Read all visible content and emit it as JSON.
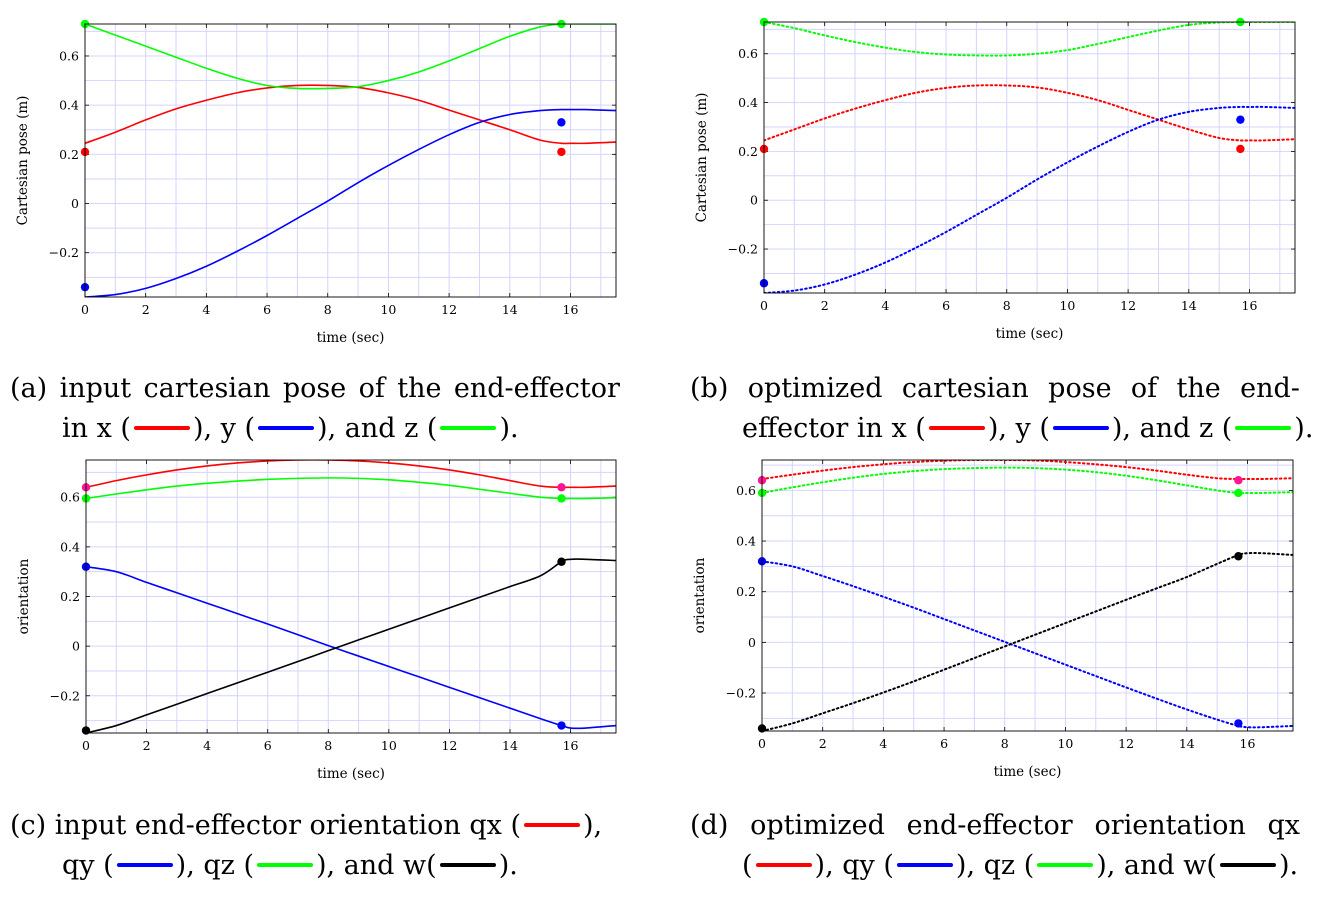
{
  "captions": {
    "a": {
      "prefix": "(a)",
      "l1": [
        "input",
        "cartesian",
        "pose",
        "of",
        "the",
        "end-effector"
      ],
      "p1": "in x (",
      "p2": "), y (",
      "p3": "), and z (",
      "p4": ")."
    },
    "b": {
      "prefix": "(b)",
      "l1": [
        "optimized",
        "cartesian",
        "pose",
        "of",
        "the",
        "end-"
      ],
      "p1": "effector in x (",
      "p2": "), y (",
      "p3": "), and z (",
      "p4": ")."
    },
    "c": {
      "prefix": "(c)",
      "l1a": "input end-effector orientation qx (",
      "l1b": "),",
      "p1": "qy (",
      "p2": "), qz (",
      "p3": "), and w(",
      "p4": ")."
    },
    "d": {
      "prefix": "(d)",
      "l1": [
        "optimized",
        "end-effector",
        "orientation",
        "qx"
      ],
      "p1": "(",
      "p2": "), qy (",
      "p3": "), qz (",
      "p4": "), and w(",
      "p5": ")."
    }
  },
  "colors": {
    "x": "#ff0000",
    "y": "#0000ff",
    "z": "#00ff00",
    "w": "#000000",
    "marker_x_orientation": "#ff1493",
    "grid": "#d4d4ff"
  },
  "chart_data": [
    {
      "id": "a",
      "type": "line",
      "xlabel": "time (sec)",
      "ylabel": "Cartesian pose (m)",
      "xlim": [
        0,
        17.5
      ],
      "ylim": [
        -0.38,
        0.73
      ],
      "grid": true,
      "line_style": "solid",
      "xticks": [
        "0",
        "2",
        "4",
        "6",
        "8",
        "10",
        "12",
        "14",
        "16"
      ],
      "yticks": [
        {
          "v": -0.2,
          "label": "−0.2"
        },
        {
          "v": 0,
          "label": "0"
        },
        {
          "v": 0.2,
          "label": "0.2"
        },
        {
          "v": 0.4,
          "label": "0.4"
        },
        {
          "v": 0.6,
          "label": "0.6"
        }
      ],
      "x": [
        0,
        1,
        2,
        3,
        4,
        5,
        6,
        7,
        8,
        9,
        10,
        11,
        12,
        13,
        14,
        15,
        15.7,
        16,
        16.5,
        17.5
      ],
      "series": [
        {
          "key": "x",
          "color": "#ff0000",
          "values": [
            0.245,
            0.29,
            0.34,
            0.385,
            0.42,
            0.45,
            0.47,
            0.48,
            0.48,
            0.472,
            0.45,
            0.42,
            0.38,
            0.34,
            0.3,
            0.258,
            0.245,
            0.245,
            0.245,
            0.25
          ]
        },
        {
          "key": "y",
          "color": "#0000ff",
          "values": [
            -0.38,
            -0.37,
            -0.345,
            -0.305,
            -0.255,
            -0.195,
            -0.13,
            -0.06,
            0.01,
            0.085,
            0.155,
            0.22,
            0.28,
            0.33,
            0.362,
            0.378,
            0.382,
            0.382,
            0.382,
            0.378
          ]
        },
        {
          "key": "z",
          "color": "#00ff00",
          "values": [
            0.73,
            0.685,
            0.64,
            0.595,
            0.55,
            0.51,
            0.48,
            0.468,
            0.468,
            0.475,
            0.5,
            0.535,
            0.58,
            0.63,
            0.68,
            0.718,
            0.73,
            0.73,
            0.73,
            0.73
          ]
        }
      ],
      "markers": [
        {
          "key": "x",
          "color": "#ff0000",
          "points": [
            [
              0,
              0.21
            ],
            [
              15.7,
              0.21
            ]
          ]
        },
        {
          "key": "y",
          "color": "#0000ff",
          "points": [
            [
              0,
              -0.34
            ],
            [
              15.7,
              0.33
            ]
          ]
        },
        {
          "key": "z",
          "color": "#00ff00",
          "points": [
            [
              0,
              0.73
            ],
            [
              15.7,
              0.73
            ]
          ]
        }
      ]
    },
    {
      "id": "b",
      "type": "line",
      "xlabel": "time (sec)",
      "ylabel": "Cartesian pose (m)",
      "xlim": [
        0,
        17.5
      ],
      "ylim": [
        -0.38,
        0.73
      ],
      "grid": true,
      "line_style": "dotted",
      "xticks": [
        "0",
        "2",
        "4",
        "6",
        "8",
        "10",
        "12",
        "14",
        "16"
      ],
      "yticks": [
        {
          "v": -0.2,
          "label": "−0.2"
        },
        {
          "v": 0,
          "label": "0"
        },
        {
          "v": 0.2,
          "label": "0.2"
        },
        {
          "v": 0.4,
          "label": "0.4"
        },
        {
          "v": 0.6,
          "label": "0.6"
        }
      ],
      "x": [
        0,
        1,
        2,
        3,
        4,
        5,
        6,
        7,
        8,
        9,
        10,
        11,
        12,
        13,
        14,
        15,
        15.7,
        16,
        16.5,
        17.5
      ],
      "series": [
        {
          "key": "x",
          "color": "#ff0000",
          "values": [
            0.245,
            0.29,
            0.335,
            0.375,
            0.41,
            0.44,
            0.46,
            0.47,
            0.47,
            0.462,
            0.44,
            0.41,
            0.37,
            0.33,
            0.29,
            0.255,
            0.245,
            0.245,
            0.245,
            0.25
          ]
        },
        {
          "key": "y",
          "color": "#0000ff",
          "values": [
            -0.38,
            -0.37,
            -0.345,
            -0.305,
            -0.255,
            -0.195,
            -0.13,
            -0.06,
            0.01,
            0.085,
            0.155,
            0.22,
            0.28,
            0.33,
            0.362,
            0.378,
            0.382,
            0.382,
            0.382,
            0.378
          ]
        },
        {
          "key": "z",
          "color": "#00ff00",
          "values": [
            0.73,
            0.705,
            0.675,
            0.648,
            0.625,
            0.607,
            0.597,
            0.593,
            0.593,
            0.6,
            0.615,
            0.64,
            0.668,
            0.695,
            0.718,
            0.728,
            0.73,
            0.73,
            0.73,
            0.73
          ]
        }
      ],
      "markers": [
        {
          "key": "x",
          "color": "#ff0000",
          "points": [
            [
              0,
              0.21
            ],
            [
              15.7,
              0.21
            ]
          ]
        },
        {
          "key": "y",
          "color": "#0000ff",
          "points": [
            [
              0,
              -0.34
            ],
            [
              15.7,
              0.33
            ]
          ]
        },
        {
          "key": "z",
          "color": "#00ff00",
          "points": [
            [
              0,
              0.73
            ],
            [
              15.7,
              0.73
            ]
          ]
        }
      ]
    },
    {
      "id": "c",
      "type": "line",
      "xlabel": "time (sec)",
      "ylabel": "orientation",
      "xlim": [
        0,
        17.5
      ],
      "ylim": [
        -0.35,
        0.75
      ],
      "grid": true,
      "line_style": "solid",
      "xticks": [
        "0",
        "2",
        "4",
        "6",
        "8",
        "10",
        "12",
        "14",
        "16"
      ],
      "yticks": [
        {
          "v": -0.2,
          "label": "−0.2"
        },
        {
          "v": 0,
          "label": "0"
        },
        {
          "v": 0.2,
          "label": "0.2"
        },
        {
          "v": 0.4,
          "label": "0.4"
        },
        {
          "v": 0.6,
          "label": "0.6"
        }
      ],
      "x": [
        0,
        1,
        2,
        3,
        4,
        5,
        6,
        7,
        8,
        9,
        10,
        11,
        12,
        13,
        14,
        15,
        15.7,
        16,
        16.5,
        17.5
      ],
      "series": [
        {
          "key": "x",
          "color": "#ff0000",
          "values": [
            0.64,
            0.667,
            0.69,
            0.71,
            0.726,
            0.738,
            0.746,
            0.75,
            0.75,
            0.746,
            0.738,
            0.726,
            0.71,
            0.69,
            0.667,
            0.645,
            0.64,
            0.64,
            0.64,
            0.645
          ]
        },
        {
          "key": "y",
          "color": "#0000ff",
          "values": [
            0.32,
            0.3,
            0.257,
            0.215,
            0.173,
            0.131,
            0.089,
            0.046,
            0.002,
            -0.04,
            -0.082,
            -0.124,
            -0.166,
            -0.208,
            -0.25,
            -0.292,
            -0.32,
            -0.33,
            -0.33,
            -0.32
          ]
        },
        {
          "key": "z",
          "color": "#00ff00",
          "values": [
            0.595,
            0.613,
            0.63,
            0.645,
            0.656,
            0.665,
            0.672,
            0.676,
            0.678,
            0.676,
            0.67,
            0.66,
            0.648,
            0.632,
            0.616,
            0.6,
            0.595,
            0.595,
            0.595,
            0.598
          ]
        },
        {
          "key": "w",
          "color": "#000000",
          "values": [
            -0.35,
            -0.32,
            -0.277,
            -0.234,
            -0.191,
            -0.148,
            -0.105,
            -0.062,
            -0.018,
            0.025,
            0.068,
            0.111,
            0.154,
            0.197,
            0.24,
            0.283,
            0.34,
            0.35,
            0.35,
            0.345
          ]
        }
      ],
      "markers": [
        {
          "key": "x",
          "color": "#ff1493",
          "points": [
            [
              0,
              0.64
            ],
            [
              15.7,
              0.64
            ]
          ]
        },
        {
          "key": "y",
          "color": "#0000ff",
          "points": [
            [
              0,
              0.32
            ],
            [
              15.7,
              -0.32
            ]
          ]
        },
        {
          "key": "z",
          "color": "#00ff00",
          "points": [
            [
              0,
              0.595
            ],
            [
              15.7,
              0.595
            ]
          ]
        },
        {
          "key": "w",
          "color": "#000000",
          "points": [
            [
              0,
              -0.34
            ],
            [
              15.7,
              0.34
            ]
          ]
        }
      ]
    },
    {
      "id": "d",
      "type": "line",
      "xlabel": "time (sec)",
      "ylabel": "orientation",
      "xlim": [
        0,
        17.5
      ],
      "ylim": [
        -0.35,
        0.72
      ],
      "grid": true,
      "line_style": "dotted",
      "xticks": [
        "0",
        "2",
        "4",
        "6",
        "8",
        "10",
        "12",
        "14",
        "16"
      ],
      "yticks": [
        {
          "v": -0.2,
          "label": "−0.2"
        },
        {
          "v": 0,
          "label": "0"
        },
        {
          "v": 0.2,
          "label": "0.2"
        },
        {
          "v": 0.4,
          "label": "0.4"
        },
        {
          "v": 0.6,
          "label": "0.6"
        }
      ],
      "x": [
        0,
        1,
        2,
        3,
        4,
        5,
        6,
        7,
        8,
        9,
        10,
        11,
        12,
        13,
        14,
        15,
        15.7,
        16,
        16.5,
        17.5
      ],
      "series": [
        {
          "key": "x",
          "color": "#ff0000",
          "values": [
            0.645,
            0.662,
            0.678,
            0.692,
            0.703,
            0.712,
            0.717,
            0.72,
            0.72,
            0.718,
            0.712,
            0.703,
            0.692,
            0.678,
            0.662,
            0.648,
            0.645,
            0.645,
            0.645,
            0.648
          ]
        },
        {
          "key": "y",
          "color": "#0000ff",
          "values": [
            0.32,
            0.3,
            0.262,
            0.222,
            0.18,
            0.137,
            0.092,
            0.047,
            0.002,
            -0.043,
            -0.088,
            -0.133,
            -0.178,
            -0.222,
            -0.265,
            -0.305,
            -0.33,
            -0.335,
            -0.335,
            -0.33
          ]
        },
        {
          "key": "z",
          "color": "#00ff00",
          "values": [
            0.59,
            0.612,
            0.632,
            0.65,
            0.665,
            0.676,
            0.684,
            0.688,
            0.69,
            0.688,
            0.682,
            0.672,
            0.658,
            0.64,
            0.62,
            0.6,
            0.59,
            0.59,
            0.59,
            0.593
          ]
        },
        {
          "key": "w",
          "color": "#000000",
          "values": [
            -0.35,
            -0.32,
            -0.28,
            -0.24,
            -0.198,
            -0.154,
            -0.108,
            -0.062,
            -0.016,
            0.03,
            0.076,
            0.122,
            0.168,
            0.213,
            0.258,
            0.31,
            0.345,
            0.352,
            0.352,
            0.345
          ]
        }
      ],
      "markers": [
        {
          "key": "x",
          "color": "#ff1493",
          "points": [
            [
              0,
              0.64
            ],
            [
              15.7,
              0.64
            ]
          ]
        },
        {
          "key": "y",
          "color": "#0000ff",
          "points": [
            [
              0,
              0.32
            ],
            [
              15.7,
              -0.32
            ]
          ]
        },
        {
          "key": "z",
          "color": "#00ff00",
          "points": [
            [
              0,
              0.59
            ],
            [
              15.7,
              0.59
            ]
          ]
        },
        {
          "key": "w",
          "color": "#000000",
          "points": [
            [
              0,
              -0.34
            ],
            [
              15.7,
              0.34
            ]
          ]
        }
      ]
    }
  ]
}
